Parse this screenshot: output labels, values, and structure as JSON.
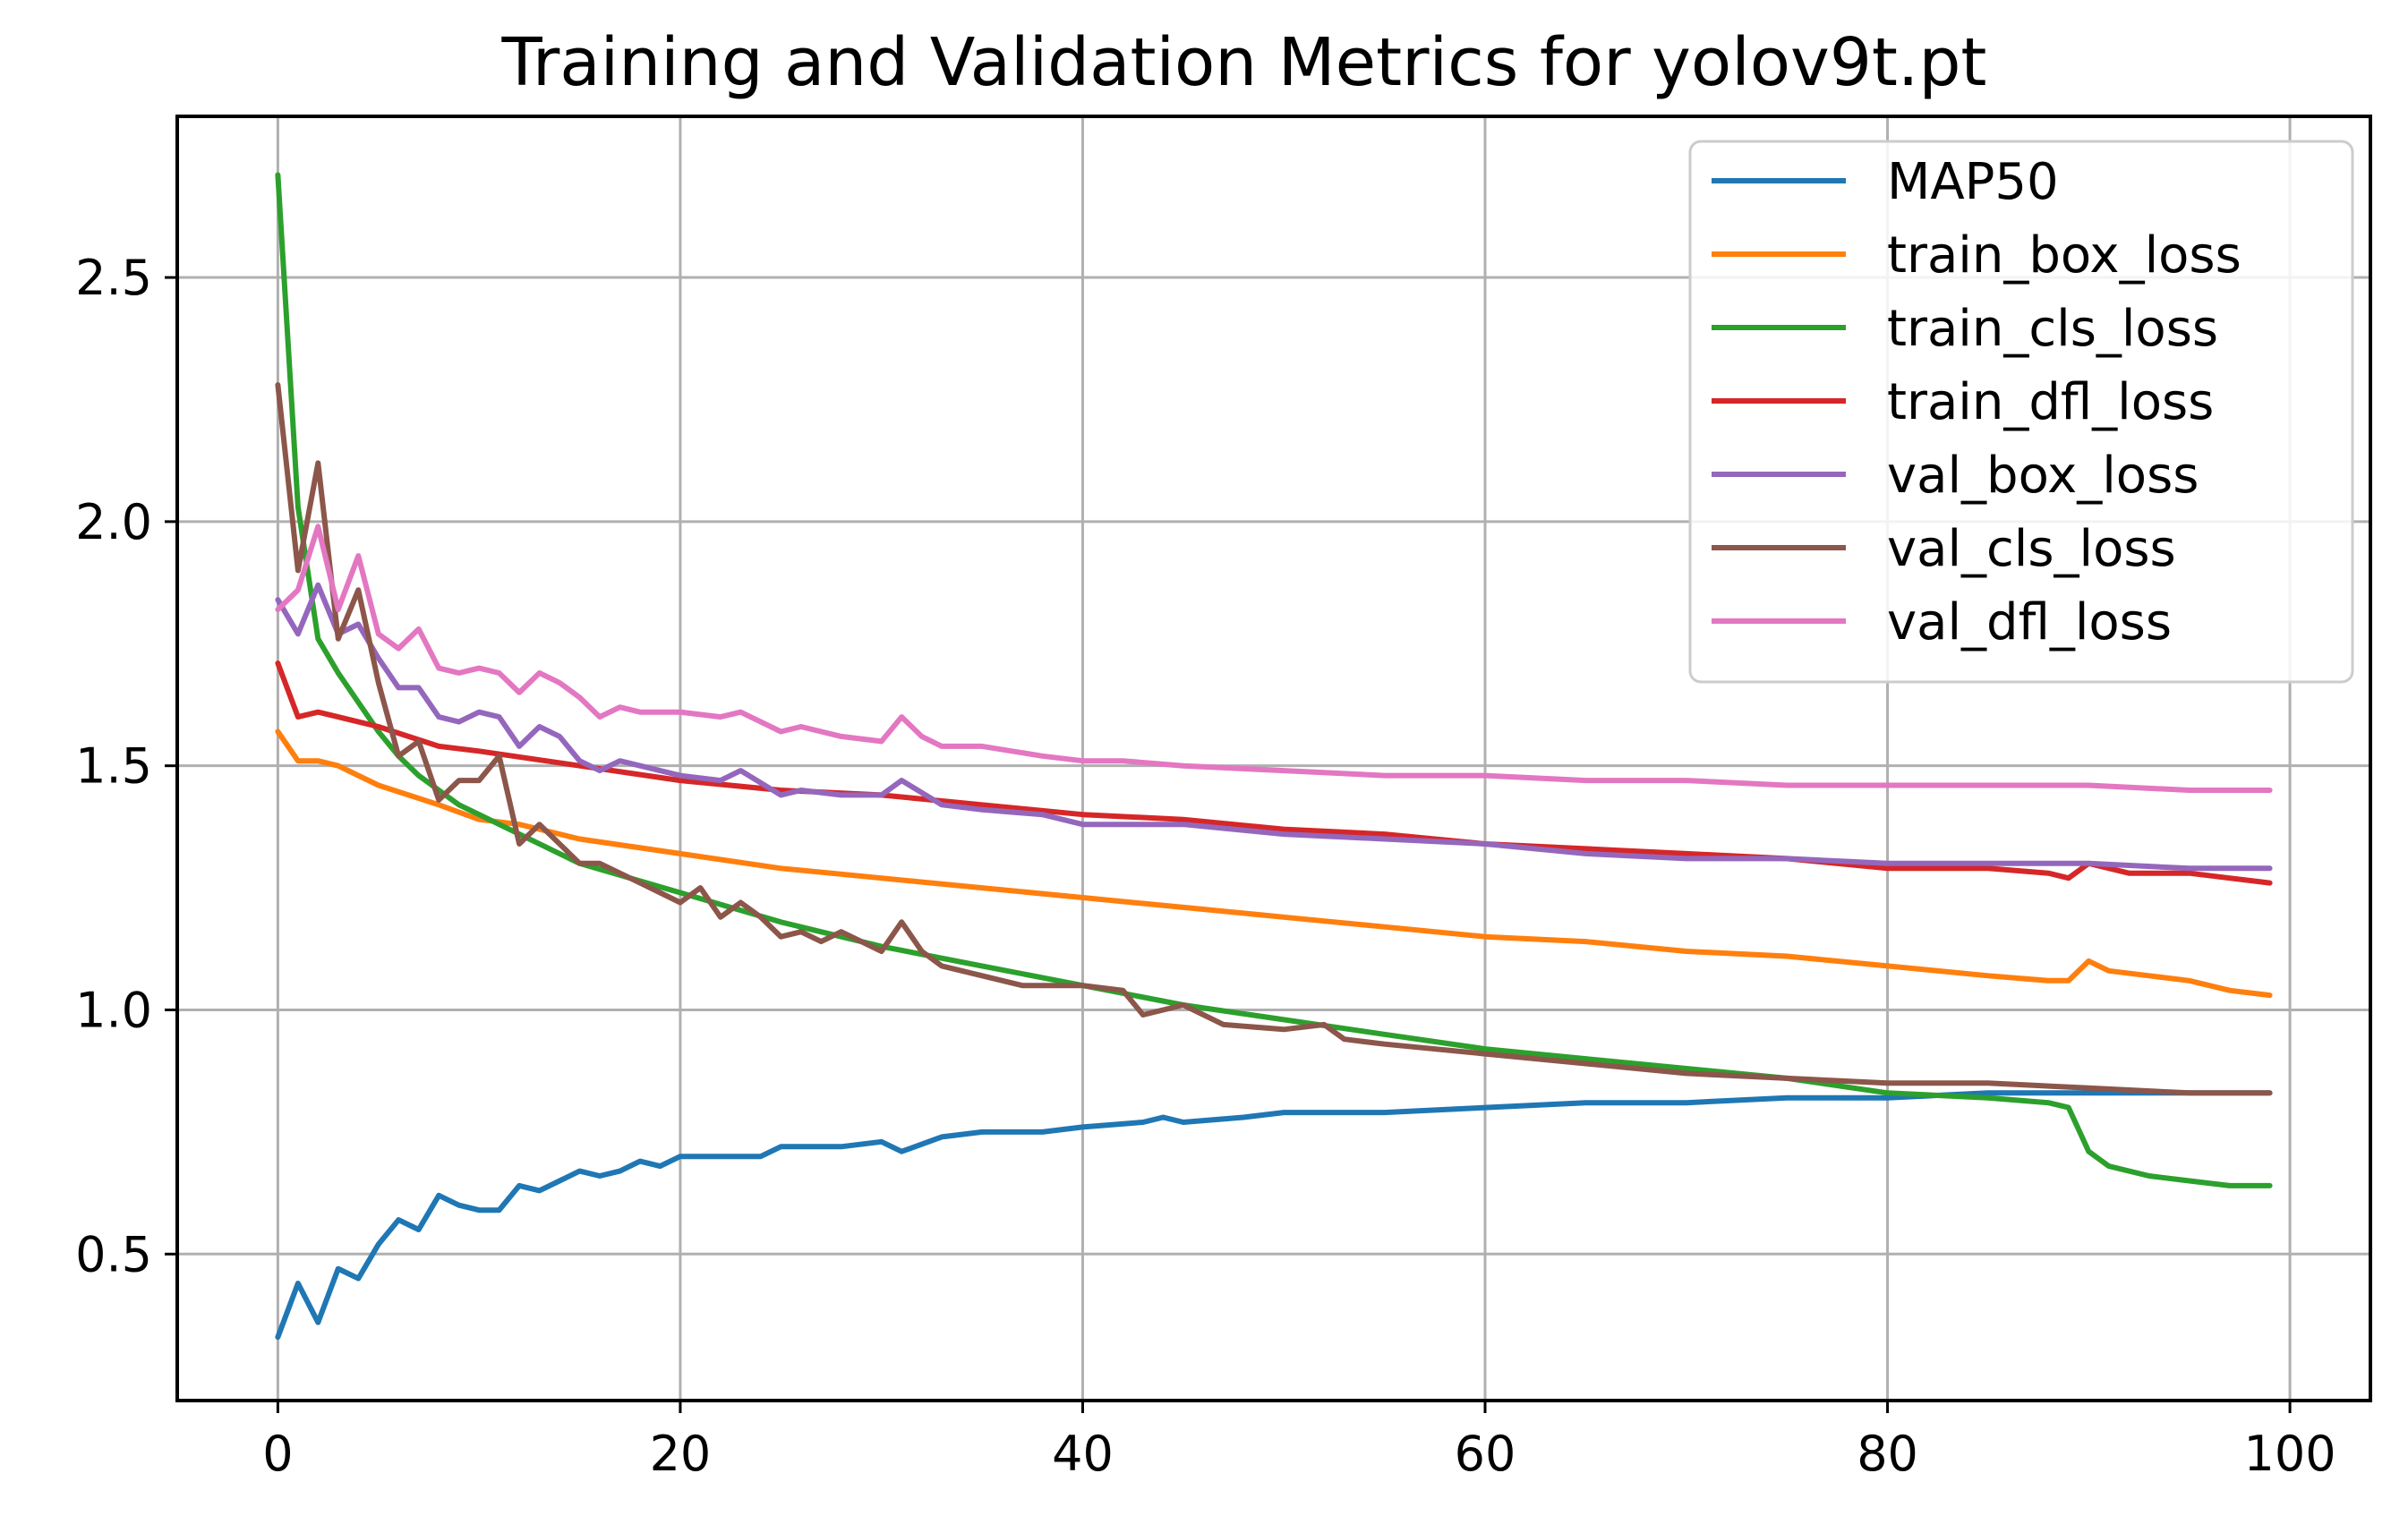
{
  "chart_data": {
    "type": "line",
    "title": "Training and Validation Metrics for yolov9t.pt",
    "xlabel": "",
    "ylabel": "",
    "xlim": [
      -5,
      104
    ],
    "ylim": [
      0.2,
      2.83
    ],
    "grid": true,
    "legend_position": "top-right",
    "x_ticks": [
      0,
      20,
      40,
      60,
      80,
      100
    ],
    "y_ticks": [
      0.5,
      1.0,
      1.5,
      2.0,
      2.5
    ],
    "x_tick_labels": [
      "0",
      "20",
      "40",
      "60",
      "80",
      "100"
    ],
    "y_tick_labels": [
      "0.5",
      "1.0",
      "1.5",
      "2.0",
      "2.5"
    ],
    "series": [
      {
        "name": "MAP50",
        "color": "#1f77b4",
        "points": [
          [
            0,
            0.33
          ],
          [
            1,
            0.44
          ],
          [
            2,
            0.36
          ],
          [
            3,
            0.47
          ],
          [
            4,
            0.45
          ],
          [
            5,
            0.52
          ],
          [
            6,
            0.57
          ],
          [
            7,
            0.55
          ],
          [
            8,
            0.62
          ],
          [
            9,
            0.6
          ],
          [
            10,
            0.59
          ],
          [
            11,
            0.59
          ],
          [
            12,
            0.64
          ],
          [
            13,
            0.63
          ],
          [
            14,
            0.65
          ],
          [
            15,
            0.67
          ],
          [
            16,
            0.66
          ],
          [
            17,
            0.67
          ],
          [
            18,
            0.69
          ],
          [
            19,
            0.68
          ],
          [
            20,
            0.7
          ],
          [
            22,
            0.7
          ],
          [
            24,
            0.7
          ],
          [
            25,
            0.72
          ],
          [
            28,
            0.72
          ],
          [
            30,
            0.73
          ],
          [
            31,
            0.71
          ],
          [
            33,
            0.74
          ],
          [
            35,
            0.75
          ],
          [
            38,
            0.75
          ],
          [
            40,
            0.76
          ],
          [
            43,
            0.77
          ],
          [
            44,
            0.78
          ],
          [
            45,
            0.77
          ],
          [
            48,
            0.78
          ],
          [
            50,
            0.79
          ],
          [
            55,
            0.79
          ],
          [
            60,
            0.8
          ],
          [
            65,
            0.81
          ],
          [
            70,
            0.81
          ],
          [
            75,
            0.82
          ],
          [
            80,
            0.82
          ],
          [
            85,
            0.83
          ],
          [
            90,
            0.83
          ],
          [
            99,
            0.83
          ]
        ]
      },
      {
        "name": "train_box_loss",
        "color": "#ff7f0e",
        "points": [
          [
            0,
            1.57
          ],
          [
            1,
            1.51
          ],
          [
            2,
            1.51
          ],
          [
            3,
            1.5
          ],
          [
            5,
            1.46
          ],
          [
            8,
            1.42
          ],
          [
            10,
            1.39
          ],
          [
            12,
            1.38
          ],
          [
            15,
            1.35
          ],
          [
            20,
            1.32
          ],
          [
            25,
            1.29
          ],
          [
            30,
            1.27
          ],
          [
            35,
            1.25
          ],
          [
            40,
            1.23
          ],
          [
            45,
            1.21
          ],
          [
            50,
            1.19
          ],
          [
            55,
            1.17
          ],
          [
            60,
            1.15
          ],
          [
            65,
            1.14
          ],
          [
            70,
            1.12
          ],
          [
            75,
            1.11
          ],
          [
            80,
            1.09
          ],
          [
            85,
            1.07
          ],
          [
            88,
            1.06
          ],
          [
            89,
            1.06
          ],
          [
            90,
            1.1
          ],
          [
            91,
            1.08
          ],
          [
            93,
            1.07
          ],
          [
            95,
            1.06
          ],
          [
            97,
            1.04
          ],
          [
            99,
            1.03
          ]
        ]
      },
      {
        "name": "train_cls_loss",
        "color": "#2ca02c",
        "points": [
          [
            0,
            2.71
          ],
          [
            1,
            2.03
          ],
          [
            2,
            1.76
          ],
          [
            3,
            1.69
          ],
          [
            4,
            1.63
          ],
          [
            5,
            1.57
          ],
          [
            6,
            1.52
          ],
          [
            7,
            1.48
          ],
          [
            8,
            1.45
          ],
          [
            9,
            1.42
          ],
          [
            10,
            1.4
          ],
          [
            12,
            1.36
          ],
          [
            15,
            1.3
          ],
          [
            20,
            1.24
          ],
          [
            25,
            1.18
          ],
          [
            30,
            1.13
          ],
          [
            35,
            1.09
          ],
          [
            40,
            1.05
          ],
          [
            45,
            1.01
          ],
          [
            50,
            0.98
          ],
          [
            55,
            0.95
          ],
          [
            60,
            0.92
          ],
          [
            65,
            0.9
          ],
          [
            70,
            0.88
          ],
          [
            75,
            0.86
          ],
          [
            80,
            0.83
          ],
          [
            85,
            0.82
          ],
          [
            88,
            0.81
          ],
          [
            89,
            0.8
          ],
          [
            90,
            0.71
          ],
          [
            91,
            0.68
          ],
          [
            93,
            0.66
          ],
          [
            95,
            0.65
          ],
          [
            97,
            0.64
          ],
          [
            99,
            0.64
          ]
        ]
      },
      {
        "name": "train_dfl_loss",
        "color": "#d62728",
        "points": [
          [
            0,
            1.71
          ],
          [
            1,
            1.6
          ],
          [
            2,
            1.61
          ],
          [
            3,
            1.6
          ],
          [
            5,
            1.58
          ],
          [
            8,
            1.54
          ],
          [
            10,
            1.53
          ],
          [
            15,
            1.5
          ],
          [
            20,
            1.47
          ],
          [
            25,
            1.45
          ],
          [
            30,
            1.44
          ],
          [
            35,
            1.42
          ],
          [
            40,
            1.4
          ],
          [
            45,
            1.39
          ],
          [
            50,
            1.37
          ],
          [
            55,
            1.36
          ],
          [
            60,
            1.34
          ],
          [
            65,
            1.33
          ],
          [
            70,
            1.32
          ],
          [
            75,
            1.31
          ],
          [
            80,
            1.29
          ],
          [
            85,
            1.29
          ],
          [
            88,
            1.28
          ],
          [
            89,
            1.27
          ],
          [
            90,
            1.3
          ],
          [
            92,
            1.28
          ],
          [
            95,
            1.28
          ],
          [
            97,
            1.27
          ],
          [
            99,
            1.26
          ]
        ]
      },
      {
        "name": "val_box_loss",
        "color": "#9467bd",
        "points": [
          [
            0,
            1.84
          ],
          [
            1,
            1.77
          ],
          [
            2,
            1.87
          ],
          [
            3,
            1.77
          ],
          [
            4,
            1.79
          ],
          [
            5,
            1.72
          ],
          [
            6,
            1.66
          ],
          [
            7,
            1.66
          ],
          [
            8,
            1.6
          ],
          [
            9,
            1.59
          ],
          [
            10,
            1.61
          ],
          [
            11,
            1.6
          ],
          [
            12,
            1.54
          ],
          [
            13,
            1.58
          ],
          [
            14,
            1.56
          ],
          [
            15,
            1.51
          ],
          [
            16,
            1.49
          ],
          [
            17,
            1.51
          ],
          [
            20,
            1.48
          ],
          [
            22,
            1.47
          ],
          [
            23,
            1.49
          ],
          [
            25,
            1.44
          ],
          [
            26,
            1.45
          ],
          [
            28,
            1.44
          ],
          [
            30,
            1.44
          ],
          [
            31,
            1.47
          ],
          [
            33,
            1.42
          ],
          [
            35,
            1.41
          ],
          [
            38,
            1.4
          ],
          [
            40,
            1.38
          ],
          [
            42,
            1.38
          ],
          [
            45,
            1.38
          ],
          [
            50,
            1.36
          ],
          [
            55,
            1.35
          ],
          [
            60,
            1.34
          ],
          [
            65,
            1.32
          ],
          [
            70,
            1.31
          ],
          [
            75,
            1.31
          ],
          [
            80,
            1.3
          ],
          [
            85,
            1.3
          ],
          [
            90,
            1.3
          ],
          [
            95,
            1.29
          ],
          [
            99,
            1.29
          ]
        ]
      },
      {
        "name": "val_cls_loss",
        "color": "#8c564b",
        "points": [
          [
            0,
            2.28
          ],
          [
            1,
            1.9
          ],
          [
            2,
            2.12
          ],
          [
            3,
            1.76
          ],
          [
            4,
            1.86
          ],
          [
            5,
            1.67
          ],
          [
            6,
            1.52
          ],
          [
            7,
            1.55
          ],
          [
            8,
            1.43
          ],
          [
            9,
            1.47
          ],
          [
            10,
            1.47
          ],
          [
            11,
            1.52
          ],
          [
            12,
            1.34
          ],
          [
            13,
            1.38
          ],
          [
            14,
            1.34
          ],
          [
            15,
            1.3
          ],
          [
            16,
            1.3
          ],
          [
            17,
            1.28
          ],
          [
            18,
            1.26
          ],
          [
            19,
            1.24
          ],
          [
            20,
            1.22
          ],
          [
            21,
            1.25
          ],
          [
            22,
            1.19
          ],
          [
            23,
            1.22
          ],
          [
            24,
            1.19
          ],
          [
            25,
            1.15
          ],
          [
            26,
            1.16
          ],
          [
            27,
            1.14
          ],
          [
            28,
            1.16
          ],
          [
            30,
            1.12
          ],
          [
            31,
            1.18
          ],
          [
            32,
            1.12
          ],
          [
            33,
            1.09
          ],
          [
            35,
            1.07
          ],
          [
            37,
            1.05
          ],
          [
            40,
            1.05
          ],
          [
            42,
            1.04
          ],
          [
            43,
            0.99
          ],
          [
            45,
            1.01
          ],
          [
            47,
            0.97
          ],
          [
            50,
            0.96
          ],
          [
            52,
            0.97
          ],
          [
            53,
            0.94
          ],
          [
            55,
            0.93
          ],
          [
            60,
            0.91
          ],
          [
            65,
            0.89
          ],
          [
            70,
            0.87
          ],
          [
            75,
            0.86
          ],
          [
            80,
            0.85
          ],
          [
            85,
            0.85
          ],
          [
            90,
            0.84
          ],
          [
            95,
            0.83
          ],
          [
            99,
            0.83
          ]
        ]
      },
      {
        "name": "val_dfl_loss",
        "color": "#e377c2",
        "points": [
          [
            0,
            1.82
          ],
          [
            1,
            1.86
          ],
          [
            2,
            1.99
          ],
          [
            3,
            1.82
          ],
          [
            4,
            1.93
          ],
          [
            5,
            1.77
          ],
          [
            6,
            1.74
          ],
          [
            7,
            1.78
          ],
          [
            8,
            1.7
          ],
          [
            9,
            1.69
          ],
          [
            10,
            1.7
          ],
          [
            11,
            1.69
          ],
          [
            12,
            1.65
          ],
          [
            13,
            1.69
          ],
          [
            14,
            1.67
          ],
          [
            15,
            1.64
          ],
          [
            16,
            1.6
          ],
          [
            17,
            1.62
          ],
          [
            18,
            1.61
          ],
          [
            20,
            1.61
          ],
          [
            22,
            1.6
          ],
          [
            23,
            1.61
          ],
          [
            25,
            1.57
          ],
          [
            26,
            1.58
          ],
          [
            28,
            1.56
          ],
          [
            30,
            1.55
          ],
          [
            31,
            1.6
          ],
          [
            32,
            1.56
          ],
          [
            33,
            1.54
          ],
          [
            35,
            1.54
          ],
          [
            38,
            1.52
          ],
          [
            40,
            1.51
          ],
          [
            42,
            1.51
          ],
          [
            45,
            1.5
          ],
          [
            50,
            1.49
          ],
          [
            55,
            1.48
          ],
          [
            60,
            1.48
          ],
          [
            65,
            1.47
          ],
          [
            70,
            1.47
          ],
          [
            75,
            1.46
          ],
          [
            80,
            1.46
          ],
          [
            85,
            1.46
          ],
          [
            90,
            1.46
          ],
          [
            95,
            1.45
          ],
          [
            99,
            1.45
          ]
        ]
      }
    ]
  }
}
